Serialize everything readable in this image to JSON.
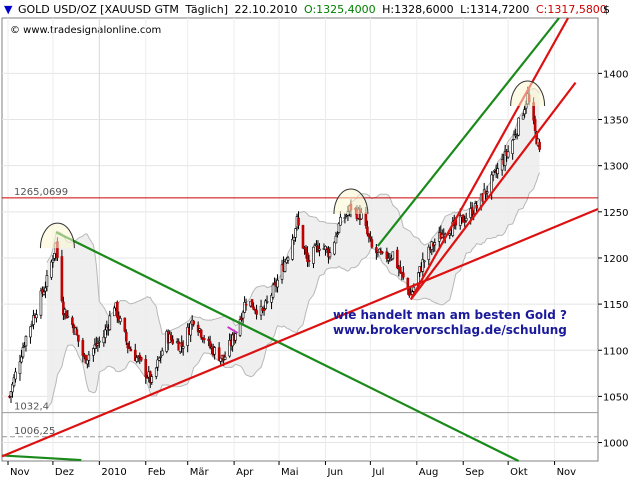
{
  "header": {
    "symbol": "GOLD USD/OZ [XAUUSD GTM",
    "period": "Täglich]",
    "date": "22.10.2010",
    "open_label": "O:1325,4000",
    "high_label": "H:1328,6000",
    "low_label": "L:1314,7200",
    "close_label": "C:1317,5800",
    "currency": "$",
    "colors": {
      "open": "#008000",
      "close": "#cc0000",
      "text": "#000000"
    }
  },
  "watermark": "© www.tradesignalonline.com",
  "annotation": {
    "line1": "wie handelt man am besten Gold ?",
    "line2": "www.brokervorschlag.de/schulung"
  },
  "chart_data": {
    "type": "candlestick",
    "ylim": [
      980,
      1460
    ],
    "yticks": [
      "1000",
      "1050",
      "1100",
      "1150",
      "1200",
      "1250",
      "1300",
      "1350",
      "1400"
    ],
    "xlim": [
      "2009-10-28",
      "2010-11-30"
    ],
    "xticks": [
      {
        "label": "Nov",
        "date": "2009-11-01"
      },
      {
        "label": "Dez",
        "date": "2009-12-01"
      },
      {
        "label": "2010",
        "date": "2010-01-01"
      },
      {
        "label": "Feb",
        "date": "2010-02-01"
      },
      {
        "label": "Mär",
        "date": "2010-03-01"
      },
      {
        "label": "Apr",
        "date": "2010-04-01"
      },
      {
        "label": "Mai",
        "date": "2010-05-01"
      },
      {
        "label": "Jun",
        "date": "2010-06-01"
      },
      {
        "label": "Jul",
        "date": "2010-07-01"
      },
      {
        "label": "Aug",
        "date": "2010-08-01"
      },
      {
        "label": "Sep",
        "date": "2010-09-01"
      },
      {
        "label": "Okt",
        "date": "2010-10-01"
      },
      {
        "label": "Nov",
        "date": "2010-11-01"
      }
    ],
    "levels": [
      {
        "value": 1265.0699,
        "label": "1265,0699",
        "color": "#cc0000"
      },
      {
        "value": 1032.4,
        "label": "1032,4",
        "color": "#999999"
      },
      {
        "value": 1006.25,
        "label": "1006,25",
        "color": "#999999"
      }
    ],
    "anchor_closes": [
      {
        "date": "2009-11-02",
        "close": 1050
      },
      {
        "date": "2009-11-12",
        "close": 1110
      },
      {
        "date": "2009-11-20",
        "close": 1145
      },
      {
        "date": "2009-11-27",
        "close": 1175
      },
      {
        "date": "2009-12-03",
        "close": 1215
      },
      {
        "date": "2009-12-08",
        "close": 1145
      },
      {
        "date": "2009-12-15",
        "close": 1125
      },
      {
        "date": "2009-12-22",
        "close": 1090
      },
      {
        "date": "2010-01-04",
        "close": 1115
      },
      {
        "date": "2010-01-11",
        "close": 1150
      },
      {
        "date": "2010-01-20",
        "close": 1105
      },
      {
        "date": "2010-01-29",
        "close": 1085
      },
      {
        "date": "2010-02-05",
        "close": 1065
      },
      {
        "date": "2010-02-15",
        "close": 1115
      },
      {
        "date": "2010-02-25",
        "close": 1105
      },
      {
        "date": "2010-03-05",
        "close": 1135
      },
      {
        "date": "2010-03-15",
        "close": 1105
      },
      {
        "date": "2010-03-25",
        "close": 1090
      },
      {
        "date": "2010-04-01",
        "close": 1115
      },
      {
        "date": "2010-04-09",
        "close": 1155
      },
      {
        "date": "2010-04-20",
        "close": 1140
      },
      {
        "date": "2010-04-30",
        "close": 1175
      },
      {
        "date": "2010-05-07",
        "close": 1205
      },
      {
        "date": "2010-05-13",
        "close": 1240
      },
      {
        "date": "2010-05-20",
        "close": 1195
      },
      {
        "date": "2010-05-28",
        "close": 1215
      },
      {
        "date": "2010-06-04",
        "close": 1205
      },
      {
        "date": "2010-06-10",
        "close": 1235
      },
      {
        "date": "2010-06-18",
        "close": 1255
      },
      {
        "date": "2010-06-25",
        "close": 1245
      },
      {
        "date": "2010-07-02",
        "close": 1210
      },
      {
        "date": "2010-07-09",
        "close": 1200
      },
      {
        "date": "2010-07-16",
        "close": 1205
      },
      {
        "date": "2010-07-22",
        "close": 1180
      },
      {
        "date": "2010-07-28",
        "close": 1160
      },
      {
        "date": "2010-08-05",
        "close": 1195
      },
      {
        "date": "2010-08-12",
        "close": 1215
      },
      {
        "date": "2010-08-20",
        "close": 1230
      },
      {
        "date": "2010-08-27",
        "close": 1235
      },
      {
        "date": "2010-09-03",
        "close": 1245
      },
      {
        "date": "2010-09-10",
        "close": 1255
      },
      {
        "date": "2010-09-17",
        "close": 1275
      },
      {
        "date": "2010-09-24",
        "close": 1295
      },
      {
        "date": "2010-10-01",
        "close": 1315
      },
      {
        "date": "2010-10-08",
        "close": 1345
      },
      {
        "date": "2010-10-14",
        "close": 1375
      },
      {
        "date": "2010-10-19",
        "close": 1335
      },
      {
        "date": "2010-10-22",
        "close": 1318
      }
    ],
    "trendlines": [
      {
        "name": "green-downtrend",
        "color": "#1a8a1a",
        "from": {
          "date": "2009-12-03",
          "value": 1228
        },
        "to": {
          "date": "2010-10-08",
          "value": 980
        }
      },
      {
        "name": "green-bottom",
        "color": "#1a8a1a",
        "from": {
          "date": "2009-10-28",
          "value": 986
        },
        "to": {
          "date": "2009-12-20",
          "value": 981
        }
      },
      {
        "name": "green-channel-upper",
        "color": "#1a8a1a",
        "from": {
          "date": "2010-07-06",
          "value": 1213
        },
        "to": {
          "date": "2010-11-04",
          "value": 1460
        }
      },
      {
        "name": "red-long-support",
        "color": "#dd1111",
        "from": {
          "date": "2009-10-28",
          "value": 985
        },
        "to": {
          "date": "2010-11-30",
          "value": 1253
        }
      },
      {
        "name": "red-steep-1",
        "color": "#dd1111",
        "from": {
          "date": "2010-07-28",
          "value": 1155
        },
        "to": {
          "date": "2010-11-10",
          "value": 1460
        }
      },
      {
        "name": "red-steep-2",
        "color": "#dd1111",
        "from": {
          "date": "2010-07-28",
          "value": 1155
        },
        "to": {
          "date": "2010-11-15",
          "value": 1390
        }
      }
    ],
    "arcs": [
      {
        "date": "2009-12-04",
        "value": 1228
      },
      {
        "date": "2010-06-18",
        "value": 1265
      },
      {
        "date": "2010-10-14",
        "value": 1382
      }
    ]
  }
}
